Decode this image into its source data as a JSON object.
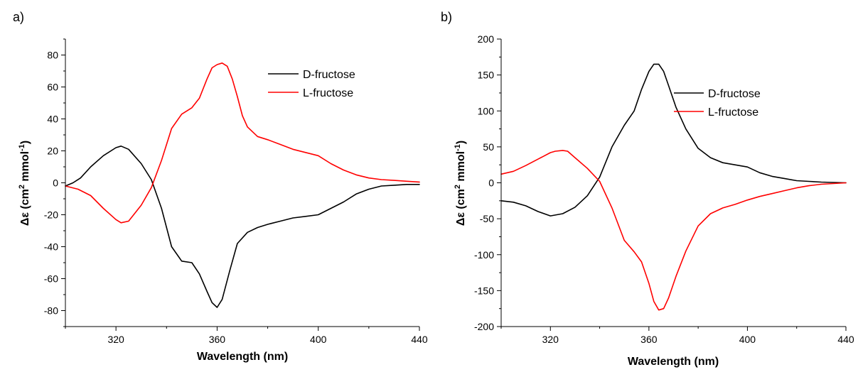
{
  "chart_data": [
    {
      "panel_label": "a)",
      "type": "line",
      "xlabel": "Wavelength (nm)",
      "ylabel_parts": [
        "Δε (cm",
        "2",
        " mmol",
        "-1",
        ")"
      ],
      "xlim": [
        300,
        440
      ],
      "ylim": [
        -90,
        90
      ],
      "xticks": [
        320,
        360,
        400,
        440
      ],
      "yticks": [
        -80,
        -60,
        -40,
        -20,
        0,
        20,
        40,
        60,
        80
      ],
      "legend_position": "top-right",
      "series": [
        {
          "name": "D-fructose",
          "color": "#000000",
          "x": [
            300,
            303,
            306,
            310,
            315,
            320,
            322,
            325,
            330,
            334,
            338,
            342,
            346,
            350,
            353,
            356,
            358,
            360,
            362,
            365,
            368,
            372,
            376,
            380,
            385,
            390,
            395,
            400,
            405,
            410,
            415,
            420,
            425,
            430,
            435,
            440
          ],
          "y": [
            -2,
            0,
            3,
            10,
            17,
            22,
            23,
            21,
            12,
            2,
            -16,
            -40,
            -49,
            -50,
            -57,
            -68,
            -75,
            -78,
            -73,
            -55,
            -38,
            -31,
            -28,
            -26,
            -24,
            -22,
            -21,
            -20,
            -16,
            -12,
            -7,
            -4,
            -2,
            -1.5,
            -1,
            -1
          ]
        },
        {
          "name": "L-fructose",
          "color": "#ff0000",
          "x": [
            300,
            305,
            310,
            315,
            320,
            322,
            325,
            330,
            334,
            338,
            342,
            346,
            350,
            353,
            356,
            358,
            360,
            362,
            364,
            366,
            368,
            370,
            372,
            376,
            380,
            385,
            390,
            395,
            400,
            405,
            410,
            415,
            420,
            425,
            430,
            435,
            440
          ],
          "y": [
            -2,
            -4,
            -8,
            -16,
            -23,
            -25,
            -24,
            -14,
            -3,
            14,
            34,
            43,
            47,
            53,
            65,
            72,
            74,
            75,
            73,
            65,
            54,
            42,
            35,
            29,
            27,
            24,
            21,
            19,
            17,
            12,
            8,
            5,
            3,
            2,
            1.5,
            1,
            0.5
          ]
        }
      ]
    },
    {
      "panel_label": "b)",
      "type": "line",
      "xlabel": "Wavelength (nm)",
      "ylabel_parts": [
        "Δε (cm",
        "2",
        " mmol",
        "-1",
        ")"
      ],
      "xlim": [
        300,
        440
      ],
      "ylim": [
        -200,
        200
      ],
      "xticks": [
        320,
        360,
        400,
        440
      ],
      "yticks": [
        -200,
        -150,
        -100,
        -50,
        0,
        50,
        100,
        150,
        200
      ],
      "legend_position": "top-right",
      "series": [
        {
          "name": "D-fructose",
          "color": "#000000",
          "x": [
            300,
            305,
            310,
            315,
            320,
            325,
            330,
            335,
            340,
            345,
            350,
            354,
            357,
            360,
            362,
            364,
            366,
            368,
            371,
            375,
            380,
            385,
            390,
            395,
            400,
            405,
            410,
            415,
            420,
            425,
            430,
            435,
            440
          ],
          "y": [
            -25,
            -27,
            -32,
            -40,
            -46,
            -43,
            -34,
            -18,
            8,
            50,
            80,
            100,
            130,
            155,
            165,
            165,
            155,
            135,
            105,
            75,
            48,
            35,
            28,
            25,
            22,
            14,
            9,
            6,
            3,
            2,
            1,
            0.5,
            0
          ],
          "label_prefix": "D",
          "label_suffix": "-fructose"
        },
        {
          "name": "L-fructose",
          "color": "#ff0000",
          "x": [
            300,
            305,
            310,
            315,
            320,
            322,
            325,
            327,
            330,
            335,
            340,
            345,
            350,
            354,
            357,
            360,
            362,
            364,
            366,
            368,
            371,
            375,
            380,
            385,
            390,
            395,
            400,
            405,
            410,
            415,
            420,
            425,
            430,
            435,
            440
          ],
          "y": [
            12,
            16,
            24,
            33,
            42,
            44,
            45,
            44,
            35,
            20,
            2,
            -35,
            -80,
            -96,
            -110,
            -140,
            -165,
            -177,
            -175,
            -160,
            -130,
            -95,
            -60,
            -43,
            -35,
            -30,
            -24,
            -19,
            -15,
            -11,
            -7,
            -4,
            -2,
            -1,
            0
          ]
        }
      ]
    }
  ]
}
